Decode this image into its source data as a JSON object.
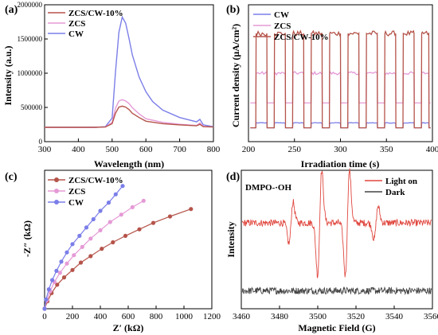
{
  "colors": {
    "zcs_cw": "#b5544a",
    "zcs": "#e59ad6",
    "cw": "#7b7ee8",
    "light": "#e0473f",
    "dark": "#444444"
  },
  "chart_data": [
    {
      "id": "a",
      "panel_label": "(a)",
      "type": "line",
      "title": "",
      "xlabel": "Wavelength (nm)",
      "ylabel": "Intensity (a.u.)",
      "xlim": [
        300,
        800
      ],
      "ylim": [
        0,
        2000000
      ],
      "xticks": [
        "300",
        "400",
        "500",
        "600",
        "700",
        "800"
      ],
      "yticks": [
        "0",
        "500000",
        "1000000",
        "1500000",
        "2000000"
      ],
      "legend": "top-left",
      "series": [
        {
          "name": "ZCS/CW-10%",
          "color": "#b5544a",
          "x": [
            300,
            450,
            480,
            500,
            510,
            520,
            530,
            540,
            550,
            560,
            580,
            600,
            650,
            700,
            750,
            760,
            770,
            800
          ],
          "y": [
            0,
            0,
            5000,
            60000,
            230000,
            330000,
            345000,
            330000,
            290000,
            230000,
            160000,
            100000,
            60000,
            40000,
            25000,
            50000,
            10000,
            5000
          ]
        },
        {
          "name": "ZCS",
          "color": "#e59ad6",
          "x": [
            300,
            450,
            480,
            500,
            510,
            520,
            530,
            540,
            550,
            560,
            580,
            600,
            650,
            700,
            750,
            760,
            770,
            800
          ],
          "y": [
            0,
            0,
            8000,
            80000,
            310000,
            430000,
            450000,
            430000,
            390000,
            320000,
            220000,
            140000,
            80000,
            50000,
            30000,
            70000,
            15000,
            5000
          ]
        },
        {
          "name": "CW",
          "color": "#7b7ee8",
          "x": [
            300,
            450,
            480,
            500,
            510,
            520,
            530,
            540,
            550,
            560,
            580,
            600,
            620,
            650,
            700,
            750,
            760,
            770,
            800
          ],
          "y": [
            0,
            0,
            10000,
            150000,
            900000,
            1550000,
            1800000,
            1700000,
            1450000,
            1180000,
            820000,
            580000,
            420000,
            280000,
            160000,
            90000,
            130000,
            40000,
            10000
          ]
        }
      ]
    },
    {
      "id": "b",
      "panel_label": "(b)",
      "type": "line",
      "title": "",
      "xlabel": "Irradiation time (s)",
      "ylabel": "Current density (μA/cm²)",
      "xlim": [
        200,
        400
      ],
      "ylim": [
        0,
        1
      ],
      "xticks": [
        "200",
        "250",
        "300",
        "350",
        "400"
      ],
      "legend": "top-left",
      "note": "on-off photocurrent; on-intervals (s) with relative levels",
      "on_intervals": [
        [
          208,
          220
        ],
        [
          228,
          240
        ],
        [
          248,
          260
        ],
        [
          268,
          280
        ],
        [
          288,
          300
        ],
        [
          308,
          320
        ],
        [
          328,
          340
        ],
        [
          348,
          360
        ],
        [
          368,
          380
        ],
        [
          388,
          396
        ]
      ],
      "series": [
        {
          "name": "CW",
          "color": "#7b7ee8",
          "off": 0.06,
          "on": 0.1
        },
        {
          "name": "ZCS",
          "color": "#e59ad6",
          "off": 0.26,
          "on": 0.5
        },
        {
          "name": "ZCS/CW-10%",
          "color": "#b5544a",
          "off": 0.06,
          "on": 0.82
        }
      ]
    },
    {
      "id": "c",
      "panel_label": "(c)",
      "type": "scatter",
      "title": "",
      "xlabel": "Z′ (kΩ)",
      "ylabel": "-Z″ (kΩ)",
      "xlim": [
        0,
        1200
      ],
      "ylim": [
        0,
        1500
      ],
      "xticks": [
        "0",
        "200",
        "400",
        "600",
        "800",
        "1000",
        "1200"
      ],
      "legend": "top-left",
      "series": [
        {
          "name": "ZCS/CW-10%",
          "color": "#b5544a",
          "x": [
            0,
            20,
            50,
            90,
            140,
            200,
            260,
            330,
            410,
            490,
            580,
            680,
            780,
            900,
            1050
          ],
          "y": [
            0,
            80,
            170,
            260,
            340,
            420,
            500,
            570,
            650,
            720,
            790,
            860,
            930,
            1000,
            1080
          ]
        },
        {
          "name": "ZCS",
          "color": "#e59ad6",
          "x": [
            0,
            15,
            40,
            70,
            110,
            160,
            210,
            270,
            330,
            400,
            470,
            550,
            630,
            710
          ],
          "y": [
            0,
            90,
            190,
            290,
            390,
            490,
            580,
            670,
            760,
            850,
            940,
            1020,
            1100,
            1170
          ]
        },
        {
          "name": "CW",
          "color": "#7b7ee8",
          "x": [
            0,
            10,
            30,
            55,
            85,
            120,
            160,
            200,
            250,
            300,
            350,
            400,
            460,
            510,
            560
          ],
          "y": [
            0,
            100,
            210,
            310,
            410,
            510,
            610,
            700,
            790,
            880,
            970,
            1060,
            1150,
            1240,
            1330
          ]
        }
      ]
    },
    {
      "id": "d",
      "panel_label": "(d)",
      "type": "line",
      "title": "",
      "annotation": "DMPO-·OH",
      "xlabel": "Magnetic Field (G)",
      "ylabel": "Intensity",
      "xlim": [
        3460,
        3560
      ],
      "ylim": [
        0,
        1
      ],
      "xticks": [
        "3460",
        "3480",
        "3500",
        "3520",
        "3540",
        "3560"
      ],
      "legend": "top-right",
      "peaks": [
        {
          "x": 3486,
          "amp": 0.15
        },
        {
          "x": 3501,
          "amp": 0.38
        },
        {
          "x": 3515.5,
          "amp": 0.38
        },
        {
          "x": 3530.5,
          "amp": 0.12
        }
      ],
      "series": [
        {
          "name": "Light on",
          "color": "#e0473f",
          "baseline": 0.62,
          "noise": 0.025
        },
        {
          "name": "Dark",
          "color": "#444444",
          "baseline": 0.13,
          "noise": 0.025
        }
      ]
    }
  ]
}
